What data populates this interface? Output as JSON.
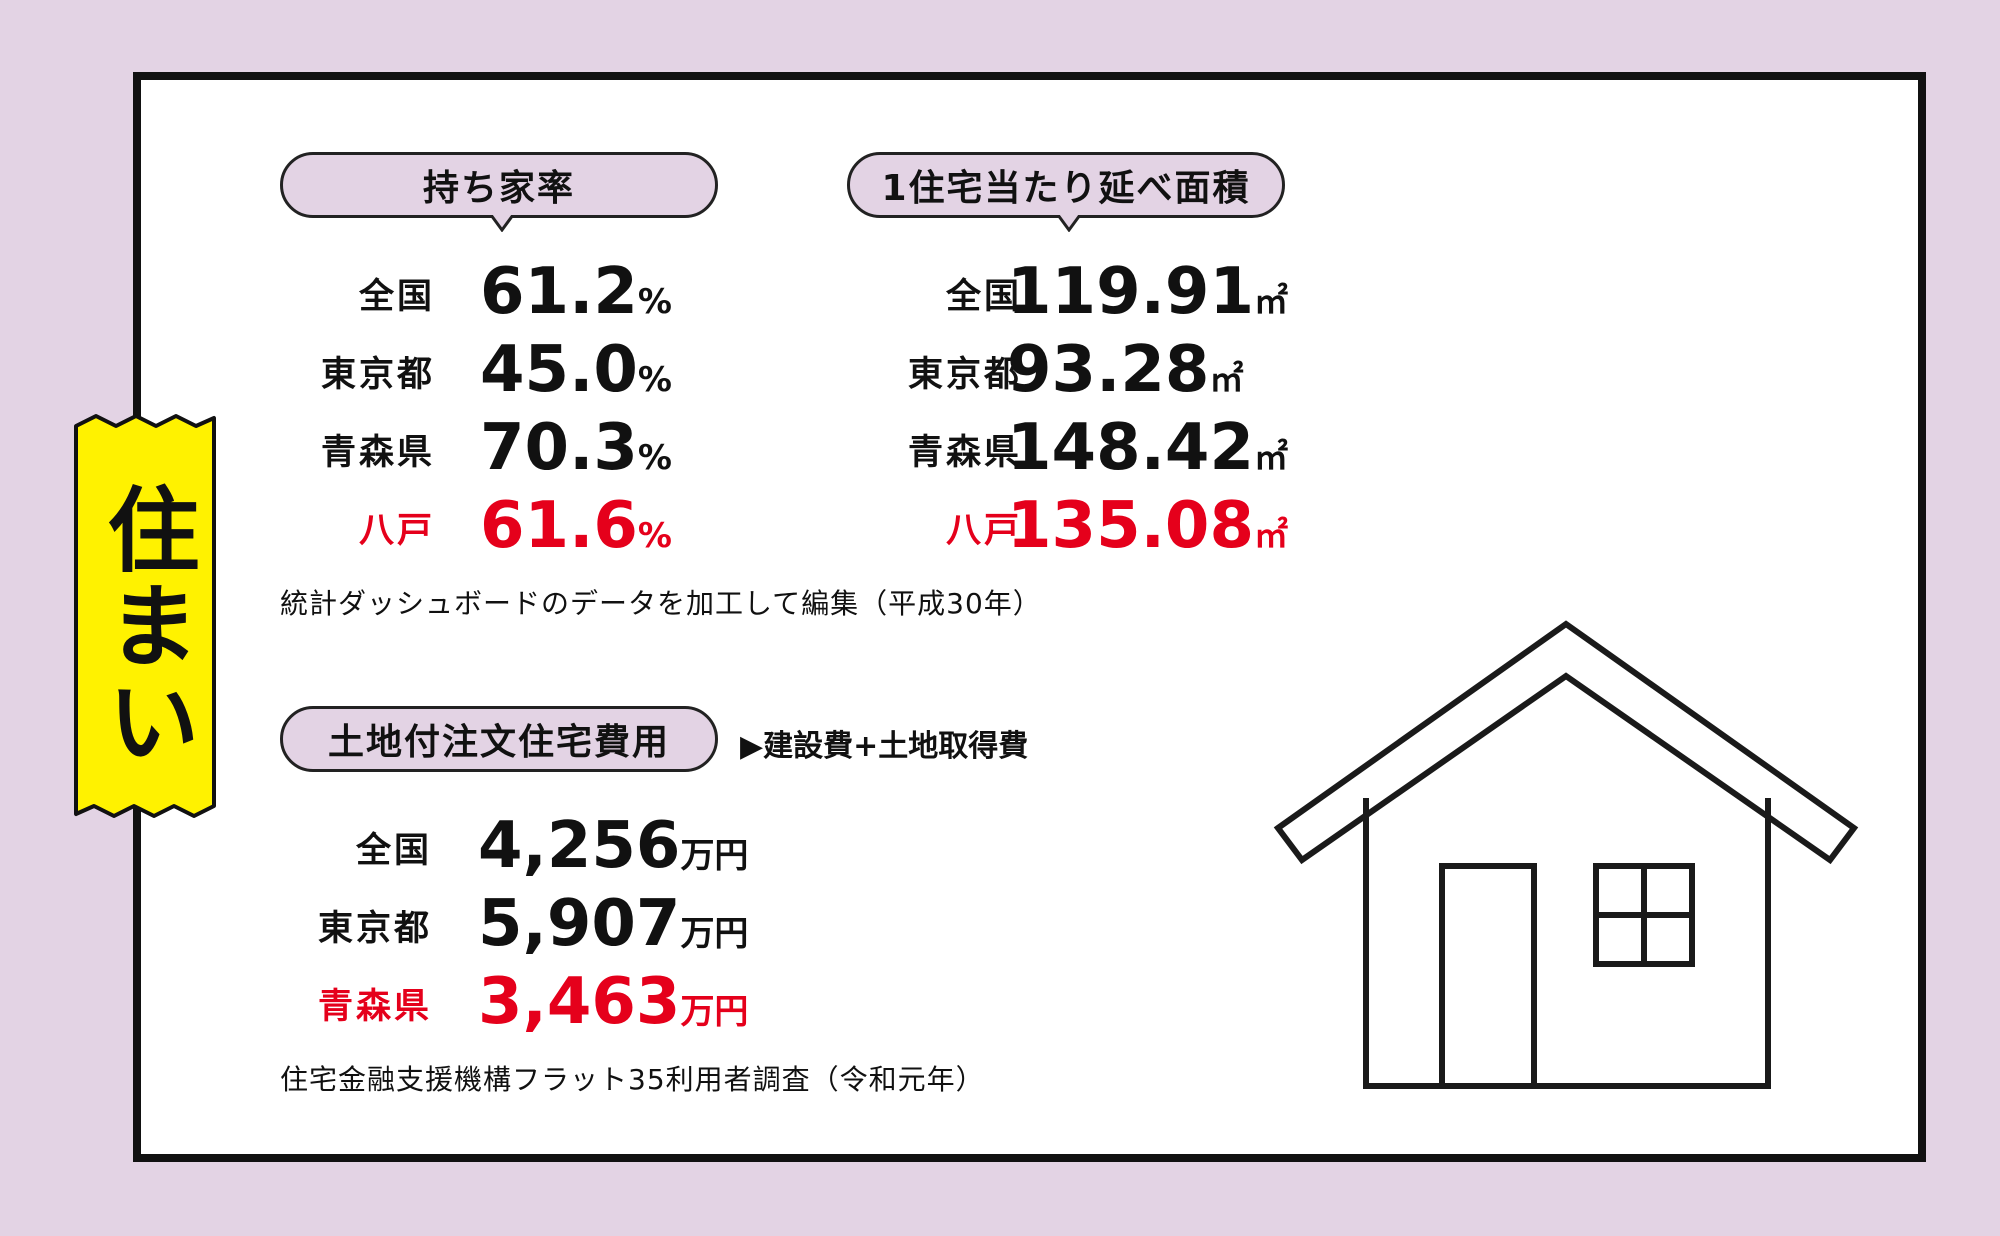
{
  "side_tag": "住まい",
  "home_ownership": {
    "title": "持ち家率",
    "rows": [
      {
        "region": "全国",
        "value": "61.2",
        "unit": "%"
      },
      {
        "region": "東京都",
        "value": "45.0",
        "unit": "%"
      },
      {
        "region": "青森県",
        "value": "70.3",
        "unit": "%"
      },
      {
        "region": "八戸",
        "value": "61.6",
        "unit": "%"
      }
    ]
  },
  "floor_area": {
    "title": "1住宅当たり延べ面積",
    "rows": [
      {
        "region": "全国",
        "value": "119.91",
        "unit": "㎡"
      },
      {
        "region": "東京都",
        "value": "93.28",
        "unit": "㎡"
      },
      {
        "region": "青森県",
        "value": "148.42",
        "unit": "㎡"
      },
      {
        "region": "八戸",
        "value": "135.08",
        "unit": "㎡"
      }
    ]
  },
  "source_top": "統計ダッシュボードのデータを加工して編集（平成30年）",
  "house_cost": {
    "title": "土地付注文住宅費用",
    "note": "▶建設費+土地取得費",
    "rows": [
      {
        "region": "全国",
        "value": "4,256",
        "unit": "万円"
      },
      {
        "region": "東京都",
        "value": "5,907",
        "unit": "万円"
      },
      {
        "region": "青森県",
        "value": "3,463",
        "unit": "万円"
      }
    ]
  },
  "source_bottom": "住宅金融支援機構フラット35利用者調査（令和元年）",
  "colors": {
    "highlight": "#e5001b",
    "tag": "#fff200",
    "pill": "#e3d3e4",
    "background": "#e3d3e4"
  }
}
